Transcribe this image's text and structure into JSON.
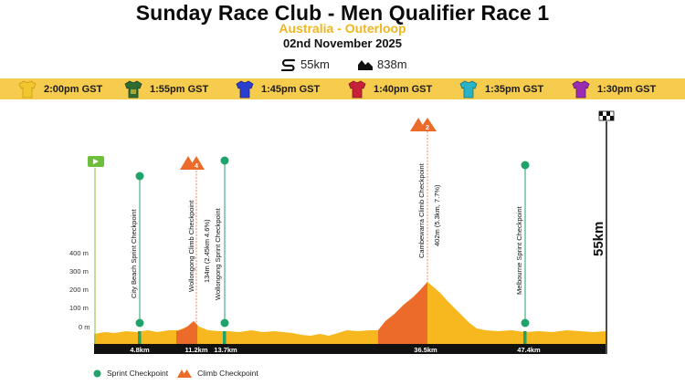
{
  "header": {
    "title": "Sunday Race Club - Men Qualifier Race 1",
    "subtitle": "Australia - Outerloop",
    "date": "02nd November 2025",
    "distance": "55km",
    "elevation": "838m"
  },
  "jerseys": [
    {
      "time": "2:00pm GST",
      "color": "#f1c62e",
      "icon": "yellow-jersey-icon"
    },
    {
      "time": "1:55pm GST",
      "color": "#2f6b32",
      "icon": "green-jersey-icon"
    },
    {
      "time": "1:45pm GST",
      "color": "#2b3fcf",
      "icon": "blue-jersey-icon"
    },
    {
      "time": "1:40pm GST",
      "color": "#c8223a",
      "icon": "red-jersey-icon"
    },
    {
      "time": "1:35pm GST",
      "color": "#2ab3c6",
      "icon": "cyan-jersey-icon"
    },
    {
      "time": "1:30pm GST",
      "color": "#9c2bb3",
      "icon": "purple-jersey-icon"
    }
  ],
  "profile": {
    "y_labels": [
      "400 m",
      "300 m",
      "200 m",
      "100 m",
      "0 m"
    ],
    "total_distance_label": "55km",
    "checkpoints": [
      {
        "type": "start",
        "icon": "start-flag-icon"
      },
      {
        "type": "sprint",
        "km_label": "4.8km",
        "label": "City Beach Sprint Checkpoint"
      },
      {
        "type": "climb",
        "category": "4",
        "km_label": "11.2km",
        "label": "Wollongong Climb Checkpoint",
        "detail": "134m (2.45km 4.6%)"
      },
      {
        "type": "sprint",
        "km_label": "13.7km",
        "label": "Wollongong Sprint Checkpoint"
      },
      {
        "type": "climb",
        "category": "2",
        "km_label": "36.5km",
        "label": "Cambewarra Climb Checkpoint",
        "detail": "402m (5.3km, 7.7%)"
      },
      {
        "type": "sprint",
        "km_label": "47.4km",
        "label": "Melbourne Sprint Checkpoint"
      },
      {
        "type": "finish",
        "icon": "checkered-flag-icon"
      }
    ]
  },
  "legend": {
    "sprint": "Sprint Checkpoint",
    "climb": "Climb Checkpoint"
  },
  "colors": {
    "yellow": "#f6b81e",
    "orange": "#ec6a2a",
    "green": "#1ea36b",
    "band": "#f6cc4f"
  }
}
